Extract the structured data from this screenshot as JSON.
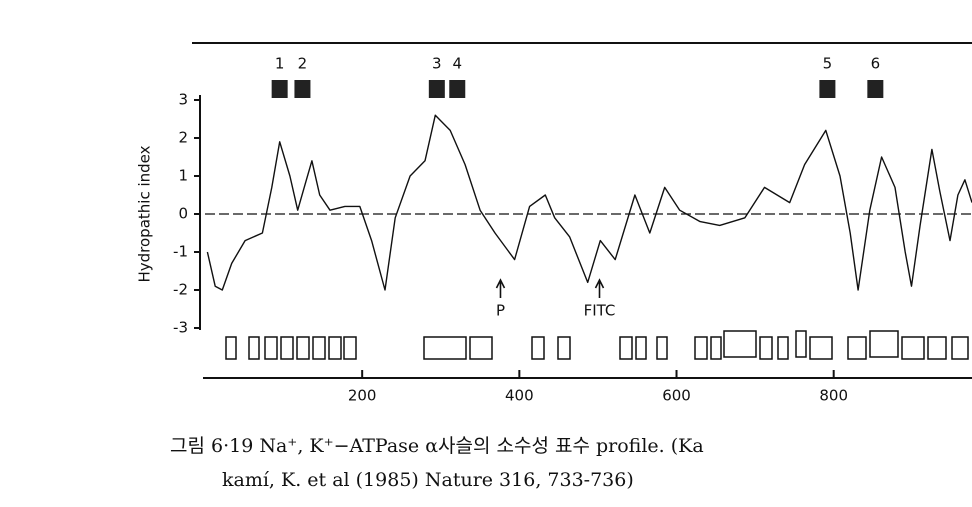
{
  "chart_data": {
    "type": "line",
    "y_label": "Hydropathic index",
    "x": [
      3,
      13,
      22,
      34,
      51,
      73,
      85,
      95,
      108,
      118,
      129,
      136,
      146,
      159,
      178,
      197,
      212,
      229,
      242,
      261,
      280,
      293,
      312,
      331,
      350,
      369,
      394,
      413,
      433,
      445,
      464,
      487,
      503,
      522,
      547,
      566,
      585,
      604,
      630,
      655,
      687,
      712,
      744,
      763,
      790,
      808,
      821,
      831,
      846,
      861,
      878,
      891,
      899,
      910,
      925,
      935,
      948,
      958,
      967,
      976
    ],
    "series": [
      {
        "color": "#111111",
        "values": [
          -1.0,
          -1.9,
          -2.0,
          -1.3,
          -0.7,
          -0.5,
          0.7,
          1.9,
          1.0,
          0.1,
          0.9,
          1.4,
          0.5,
          0.1,
          0.2,
          0.2,
          -0.7,
          -2.0,
          -0.1,
          1.0,
          1.4,
          2.6,
          2.2,
          1.3,
          0.1,
          -0.5,
          -1.2,
          0.2,
          0.5,
          -0.1,
          -0.6,
          -1.8,
          -0.7,
          -1.2,
          0.5,
          -0.5,
          0.7,
          0.1,
          -0.2,
          -0.3,
          -0.1,
          0.7,
          0.3,
          1.3,
          2.2,
          1.0,
          -0.5,
          -2.0,
          0.1,
          1.5,
          0.7,
          -1.0,
          -1.9,
          -0.3,
          1.7,
          0.6,
          -0.7,
          0.5,
          0.9,
          0.3
        ]
      }
    ],
    "xlim": [
      0,
      976
    ],
    "ylim": [
      -3,
      3
    ],
    "xticks": [
      200,
      400,
      600,
      800
    ],
    "yticks": [
      3,
      2,
      1,
      0,
      -1,
      -2,
      -3
    ],
    "zero_line": true,
    "segments": [
      {
        "label": "1",
        "x": 95
      },
      {
        "label": "2",
        "x": 124
      },
      {
        "label": "3",
        "x": 295
      },
      {
        "label": "4",
        "x": 321
      },
      {
        "label": "5",
        "x": 792
      },
      {
        "label": "6",
        "x": 853
      }
    ],
    "annotations": [
      {
        "text": "P",
        "x": 376
      },
      {
        "text": "FITC",
        "x": 502
      }
    ]
  },
  "caption": [
    "그림 6·19  Na⁺, K⁺−ATPase α사슬의  소수성  표수  profile. (Ka",
    "kamí, K. et al (1985) Nature 316, 733-736)"
  ]
}
